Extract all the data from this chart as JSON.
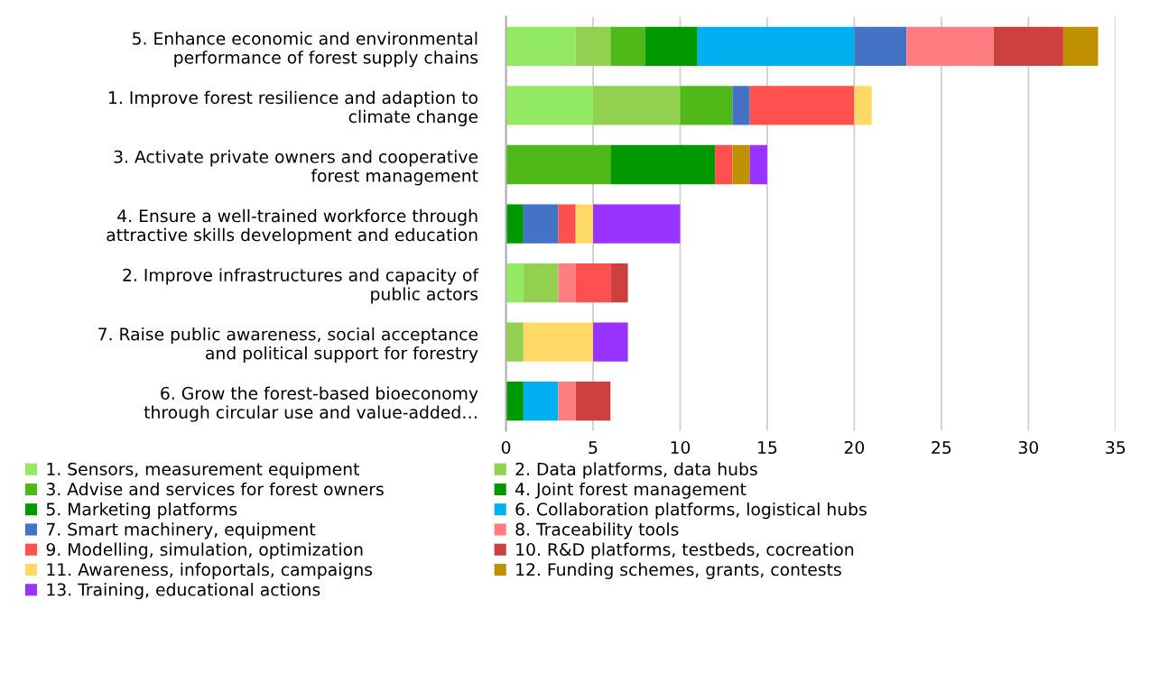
{
  "chart_data": {
    "type": "bar",
    "orientation": "horizontal",
    "stacked": true,
    "categories": [
      "5. Enhance economic and environmental\nperformance of forest supply chains",
      "1. Improve forest resilience and adaption to\nclimate change",
      "3. Activate private owners and cooperative\nforest management",
      "4. Ensure a well-trained workforce through\nattractive skills development and education",
      "2. Improve infrastructures and capacity of\npublic actors",
      "7. Raise public awareness, social acceptance\nand political support for forestry",
      "6. Grow the forest-based bioeconomy\nthrough circular use and value-added…"
    ],
    "series": [
      {
        "name": "1. Sensors, measurement equipment",
        "color": "#92ea62",
        "values": [
          4,
          5,
          0,
          0,
          1,
          0,
          0
        ]
      },
      {
        "name": "2. Data platforms, data hubs",
        "color": "#92d050",
        "values": [
          2,
          5,
          0,
          0,
          2,
          1,
          0
        ]
      },
      {
        "name": "3. Advise and services for forest owners",
        "color": "#4eb918",
        "values": [
          2,
          3,
          6,
          0,
          0,
          0,
          0
        ]
      },
      {
        "name": "4. Joint forest management",
        "color": "#009900",
        "values": [
          3,
          0,
          6,
          1,
          0,
          0,
          1
        ]
      },
      {
        "name": "5. Marketing platforms",
        "color": "#009900",
        "values": [
          0,
          0,
          0,
          0,
          0,
          0,
          0
        ]
      },
      {
        "name": "6. Collaboration platforms, logistical hubs",
        "color": "#00b0f0",
        "values": [
          9,
          0,
          0,
          0,
          0,
          0,
          2
        ]
      },
      {
        "name": "7. Smart machinery, equipment",
        "color": "#4472c4",
        "values": [
          3,
          1,
          0,
          2,
          0,
          0,
          0
        ]
      },
      {
        "name": "8. Traceability tools",
        "color": "#ff7c80",
        "values": [
          5,
          0,
          0,
          0,
          1,
          0,
          1
        ]
      },
      {
        "name": "9. Modelling, simulation, optimization",
        "color": "#ff5050",
        "values": [
          0,
          6,
          1,
          1,
          2,
          0,
          0
        ]
      },
      {
        "name": "10. R&D platforms, testbeds, cocreation",
        "color": "#cc4040",
        "values": [
          4,
          0,
          0,
          0,
          1,
          0,
          2
        ]
      },
      {
        "name": "11. Awareness, infoportals, campaigns",
        "color": "#ffd966",
        "values": [
          0,
          1,
          0,
          1,
          0,
          4,
          0
        ]
      },
      {
        "name": "12. Funding schemes, grants, contests",
        "color": "#bf9000",
        "values": [
          2,
          0,
          1,
          0,
          0,
          0,
          0
        ]
      },
      {
        "name": "13. Training, educational actions",
        "color": "#9933ff",
        "values": [
          0,
          0,
          1,
          5,
          0,
          2,
          0
        ]
      }
    ],
    "xlim": [
      0,
      35
    ],
    "xticks": [
      0,
      5,
      10,
      15,
      20,
      25,
      30,
      35
    ],
    "grid": "x",
    "legend": "bottom"
  }
}
